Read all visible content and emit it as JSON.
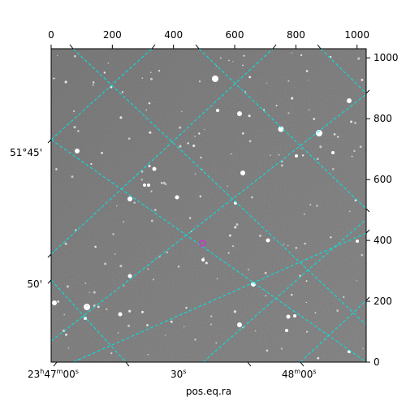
{
  "axes": {
    "x_pixel": {
      "ticks": [
        "0",
        "200",
        "400",
        "600",
        "800",
        "1000"
      ],
      "values": [
        0,
        200,
        400,
        600,
        800,
        1000
      ],
      "range": [
        0,
        1030
      ]
    },
    "y_pixel": {
      "ticks": [
        "0",
        "200",
        "400",
        "600",
        "800",
        "1000"
      ],
      "values": [
        0,
        200,
        400,
        600,
        800,
        1000
      ],
      "range": [
        0,
        1030
      ]
    },
    "ra": {
      "ticks": [
        {
          "base": "23",
          "h": "h",
          "m1": "47",
          "m": "m",
          "s1": "00",
          "s": "s"
        },
        {
          "base": "30",
          "s": "s"
        },
        {
          "base": "48",
          "m": "m",
          "s1": "00",
          "s": "s"
        }
      ],
      "title": "pos.eq.ra"
    },
    "dec": {
      "ticks": [
        "51°45'",
        "50'"
      ]
    }
  },
  "colors": {
    "grid": "#00e5e5",
    "marker": "#cc33cc",
    "background_sky": "#7f7f7f"
  },
  "marker": {
    "shape": "circle-icon"
  }
}
